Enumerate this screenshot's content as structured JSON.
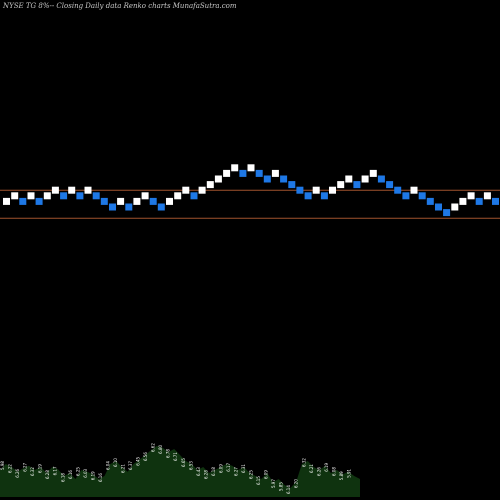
{
  "header": {
    "title": "NYSE TG 8%-- Closing Daily data Renko charts MunafaSutra.com"
  },
  "chart_data": {
    "type": "renko",
    "colors": {
      "up_brick": "#ffffff",
      "down_brick": "#1e78e6",
      "reference_line": "#a0522d",
      "volume_area": "#0f330f",
      "volume_text": "#ffffff",
      "background": "#000000"
    },
    "reference_lines": [
      {
        "value": 6.6
      },
      {
        "value": 5.6
      }
    ],
    "bricks": [
      {
        "dir": "up",
        "close": 6.2
      },
      {
        "dir": "up",
        "close": 6.4
      },
      {
        "dir": "down",
        "close": 6.2
      },
      {
        "dir": "up",
        "close": 6.4
      },
      {
        "dir": "down",
        "close": 6.2
      },
      {
        "dir": "up",
        "close": 6.4
      },
      {
        "dir": "up",
        "close": 6.6
      },
      {
        "dir": "down",
        "close": 6.4
      },
      {
        "dir": "up",
        "close": 6.6
      },
      {
        "dir": "down",
        "close": 6.4
      },
      {
        "dir": "up",
        "close": 6.6
      },
      {
        "dir": "down",
        "close": 6.4
      },
      {
        "dir": "down",
        "close": 6.2
      },
      {
        "dir": "down",
        "close": 6.0
      },
      {
        "dir": "up",
        "close": 6.2
      },
      {
        "dir": "down",
        "close": 6.0
      },
      {
        "dir": "up",
        "close": 6.2
      },
      {
        "dir": "up",
        "close": 6.4
      },
      {
        "dir": "down",
        "close": 6.2
      },
      {
        "dir": "down",
        "close": 6.0
      },
      {
        "dir": "up",
        "close": 6.2
      },
      {
        "dir": "up",
        "close": 6.4
      },
      {
        "dir": "up",
        "close": 6.6
      },
      {
        "dir": "down",
        "close": 6.4
      },
      {
        "dir": "up",
        "close": 6.6
      },
      {
        "dir": "up",
        "close": 6.8
      },
      {
        "dir": "up",
        "close": 7.0
      },
      {
        "dir": "up",
        "close": 7.2
      },
      {
        "dir": "up",
        "close": 7.4
      },
      {
        "dir": "down",
        "close": 7.2
      },
      {
        "dir": "up",
        "close": 7.4
      },
      {
        "dir": "down",
        "close": 7.2
      },
      {
        "dir": "down",
        "close": 7.0
      },
      {
        "dir": "up",
        "close": 7.2
      },
      {
        "dir": "down",
        "close": 7.0
      },
      {
        "dir": "down",
        "close": 6.8
      },
      {
        "dir": "down",
        "close": 6.6
      },
      {
        "dir": "down",
        "close": 6.4
      },
      {
        "dir": "up",
        "close": 6.6
      },
      {
        "dir": "down",
        "close": 6.4
      },
      {
        "dir": "up",
        "close": 6.6
      },
      {
        "dir": "up",
        "close": 6.8
      },
      {
        "dir": "up",
        "close": 7.0
      },
      {
        "dir": "down",
        "close": 6.8
      },
      {
        "dir": "up",
        "close": 7.0
      },
      {
        "dir": "up",
        "close": 7.2
      },
      {
        "dir": "down",
        "close": 7.0
      },
      {
        "dir": "down",
        "close": 6.8
      },
      {
        "dir": "down",
        "close": 6.6
      },
      {
        "dir": "down",
        "close": 6.4
      },
      {
        "dir": "up",
        "close": 6.6
      },
      {
        "dir": "down",
        "close": 6.4
      },
      {
        "dir": "down",
        "close": 6.2
      },
      {
        "dir": "down",
        "close": 6.0
      },
      {
        "dir": "down",
        "close": 5.8
      },
      {
        "dir": "up",
        "close": 6.0
      },
      {
        "dir": "up",
        "close": 6.2
      },
      {
        "dir": "up",
        "close": 6.4
      },
      {
        "dir": "down",
        "close": 6.2
      },
      {
        "dir": "up",
        "close": 6.4
      },
      {
        "dir": "down",
        "close": 6.2
      },
      {
        "dir": "up",
        "close": 6.4
      },
      {
        "dir": "down",
        "close": 6.2
      },
      {
        "dir": "down",
        "close": 6.0
      },
      {
        "dir": "down",
        "close": 5.8
      }
    ],
    "bottom_labels": [
      "5.98",
      "6.22",
      "6.26",
      "6.27",
      "6.32",
      "6.19",
      "6.28",
      "6.17",
      "6.18",
      "6.16",
      "6.25",
      "6.03",
      "6.19",
      "6.16",
      "6.04",
      "6.10",
      "6.21",
      "6.37",
      "6.45",
      "6.56",
      "6.62",
      "6.80",
      "6.78",
      "6.71",
      "6.65",
      "6.53",
      "6.43",
      "6.28",
      "6.18",
      "6.09",
      "6.17",
      "6.27",
      "6.31",
      "6.25",
      "6.15",
      "6.09",
      "5.97",
      "5.85",
      "6.14",
      "6.20",
      "6.32",
      "6.21",
      "6.26",
      "6.19",
      "6.08",
      "5.89",
      "5.91"
    ],
    "volume_profile": [
      0.45,
      0.55,
      0.5,
      0.42,
      0.48,
      0.52,
      0.45,
      0.5,
      0.4,
      0.5,
      0.46,
      0.35,
      0.4,
      0.3,
      0.45,
      0.42,
      0.38,
      0.3,
      0.35,
      0.55,
      0.6,
      0.5,
      0.42,
      0.55,
      0.62,
      0.7,
      0.78,
      0.85,
      0.82,
      0.75,
      0.8,
      0.7,
      0.6,
      0.55,
      0.45,
      0.5,
      0.4,
      0.45,
      0.5,
      0.55,
      0.52,
      0.45,
      0.5,
      0.4,
      0.35,
      0.3,
      0.4,
      0.25,
      0.3,
      0.2,
      0.15,
      0.25,
      0.55,
      0.6,
      0.5,
      0.45,
      0.52,
      0.4,
      0.45,
      0.38,
      0.42,
      0.35,
      0.3
    ]
  }
}
